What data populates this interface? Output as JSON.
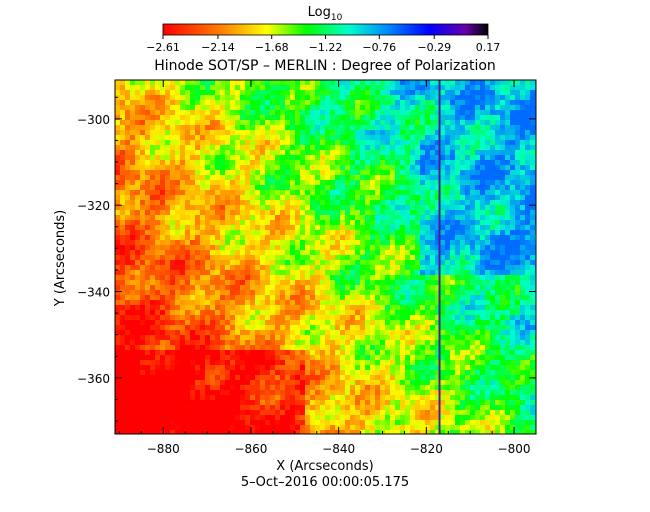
{
  "chart_data": {
    "type": "heatmap",
    "title": "Hinode SOT/SP – MERLIN : Degree of Polarization",
    "xlabel": "X (Arcseconds)",
    "ylabel": "Y (Arcseconds)",
    "footer": "5–Oct–2016 00:00:05.175",
    "xlim": [
      -891,
      -795
    ],
    "ylim": [
      -373,
      -291
    ],
    "x_ticks": [
      -880,
      -860,
      -840,
      -820,
      -800
    ],
    "x_tick_labels": [
      "−880",
      "−860",
      "−840",
      "−820",
      "−800"
    ],
    "y_ticks": [
      -300,
      -320,
      -340,
      -360
    ],
    "y_tick_labels": [
      "−300",
      "−320",
      "−340",
      "−360"
    ],
    "colorbar": {
      "title_base": "Log",
      "title_sub": "10",
      "colormap": "rainbow",
      "min": -2.61,
      "max": 0.17,
      "ticks": [
        -2.61,
        -2.14,
        -1.68,
        -1.22,
        -0.76,
        -0.29,
        0.17
      ],
      "tick_labels": [
        "−2.61",
        "−2.14",
        "−1.68",
        "−1.22",
        "−0.76",
        "−0.29",
        "0.17"
      ]
    },
    "vertical_line_x": -817,
    "grid": false
  },
  "colors": {
    "line": "#4a1e9a",
    "low": "#ff0000",
    "high": "#000000"
  }
}
